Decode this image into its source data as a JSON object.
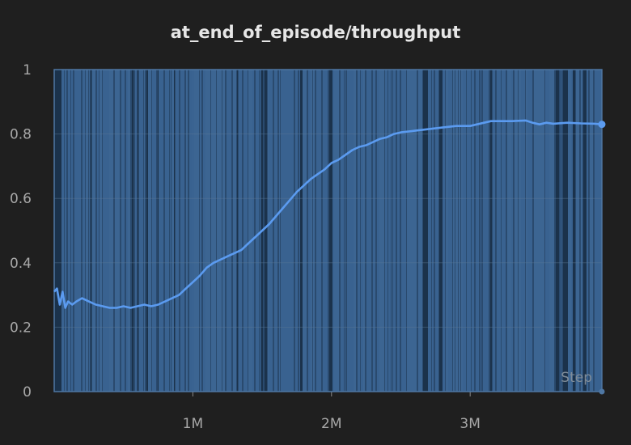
{
  "chart_data": {
    "type": "line",
    "title": "at_end_of_episode/throughput",
    "xlabel": "Step",
    "ylabel": "",
    "xlim": [
      0,
      3950000
    ],
    "ylim": [
      0,
      1
    ],
    "grid": true,
    "legend": "none",
    "x_ticks": [
      {
        "value": 1000000,
        "label": "1M"
      },
      {
        "value": 2000000,
        "label": "2M"
      },
      {
        "value": 3000000,
        "label": "3M"
      }
    ],
    "y_ticks": [
      {
        "value": 0,
        "label": "0"
      },
      {
        "value": 0.2,
        "label": "0.2"
      },
      {
        "value": 0.4,
        "label": "0.4"
      },
      {
        "value": 0.6,
        "label": "0.6"
      },
      {
        "value": 0.8,
        "label": "0.8"
      },
      {
        "value": 1,
        "label": "1"
      }
    ],
    "colors": {
      "background": "#1f1f1f",
      "plot_area": "#2a4a6e",
      "band": "#3f6b9c",
      "line": "#5b9bf0"
    },
    "series": [
      {
        "x": [
          0,
          20000,
          40000,
          60000,
          80000,
          100000,
          130000,
          160000,
          200000,
          250000,
          300000,
          350000,
          400000,
          450000,
          500000,
          550000,
          600000,
          650000,
          700000,
          750000,
          800000,
          850000,
          900000,
          950000,
          1000000,
          1050000,
          1100000,
          1150000,
          1200000,
          1250000,
          1300000,
          1350000,
          1400000,
          1450000,
          1500000,
          1550000,
          1600000,
          1650000,
          1700000,
          1750000,
          1800000,
          1850000,
          1900000,
          1950000,
          2000000,
          2050000,
          2100000,
          2150000,
          2200000,
          2250000,
          2300000,
          2350000,
          2400000,
          2450000,
          2500000,
          2600000,
          2700000,
          2800000,
          2900000,
          3000000,
          3050000,
          3100000,
          3150000,
          3200000,
          3300000,
          3400000,
          3450000,
          3500000,
          3550000,
          3600000,
          3700000,
          3800000,
          3900000,
          3950000
        ],
        "values": [
          0.31,
          0.32,
          0.27,
          0.31,
          0.26,
          0.28,
          0.27,
          0.28,
          0.29,
          0.28,
          0.27,
          0.265,
          0.26,
          0.26,
          0.265,
          0.26,
          0.265,
          0.27,
          0.265,
          0.27,
          0.28,
          0.29,
          0.3,
          0.32,
          0.34,
          0.36,
          0.385,
          0.4,
          0.41,
          0.42,
          0.43,
          0.44,
          0.46,
          0.48,
          0.5,
          0.52,
          0.545,
          0.57,
          0.595,
          0.62,
          0.64,
          0.66,
          0.675,
          0.69,
          0.71,
          0.72,
          0.735,
          0.75,
          0.76,
          0.765,
          0.775,
          0.785,
          0.79,
          0.8,
          0.805,
          0.81,
          0.815,
          0.82,
          0.825,
          0.825,
          0.83,
          0.835,
          0.84,
          0.84,
          0.84,
          0.842,
          0.835,
          0.83,
          0.835,
          0.832,
          0.835,
          0.833,
          0.832,
          0.83
        ]
      }
    ]
  }
}
